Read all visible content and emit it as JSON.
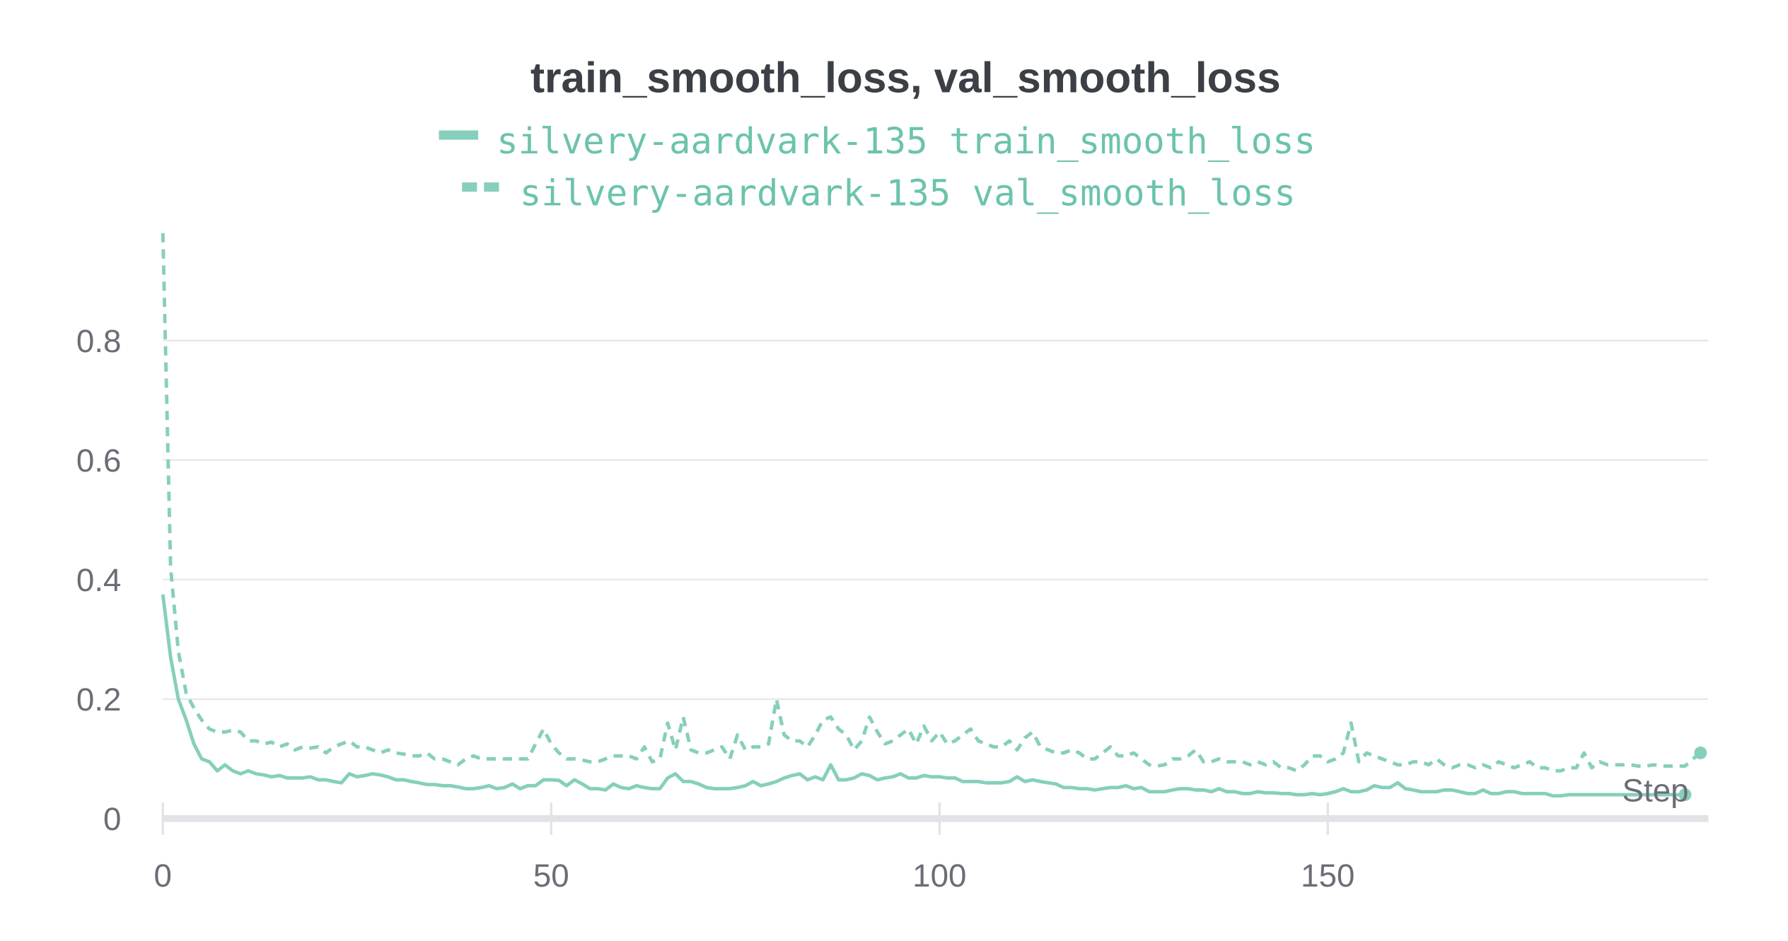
{
  "chart_data": {
    "type": "line",
    "title": "train_smooth_loss, val_smooth_loss",
    "xlabel": "Step",
    "ylabel": "",
    "xlim": [
      0,
      199
    ],
    "ylim": [
      0,
      0.98
    ],
    "x_ticks": [
      0,
      50,
      100,
      150
    ],
    "y_ticks": [
      0,
      0.2,
      0.4,
      0.6,
      0.8
    ],
    "y_tick_labels": [
      "0",
      "0.2",
      "0.4",
      "0.6",
      "0.8"
    ],
    "grid": true,
    "legend_position": "top",
    "color": "#86cfbc",
    "series": [
      {
        "name": "silvery-aardvark-135 train_smooth_loss",
        "dash": "solid",
        "x_start": 0,
        "values": [
          0.375,
          0.27,
          0.2,
          0.165,
          0.125,
          0.1,
          0.095,
          0.08,
          0.09,
          0.08,
          0.075,
          0.08,
          0.075,
          0.073,
          0.07,
          0.072,
          0.068,
          0.068,
          0.068,
          0.07,
          0.065,
          0.065,
          0.062,
          0.06,
          0.075,
          0.07,
          0.072,
          0.075,
          0.073,
          0.07,
          0.065,
          0.065,
          0.062,
          0.06,
          0.057,
          0.057,
          0.055,
          0.055,
          0.053,
          0.05,
          0.05,
          0.052,
          0.055,
          0.05,
          0.052,
          0.058,
          0.05,
          0.055,
          0.055,
          0.065,
          0.065,
          0.064,
          0.055,
          0.065,
          0.058,
          0.05,
          0.05,
          0.048,
          0.058,
          0.052,
          0.05,
          0.055,
          0.052,
          0.05,
          0.05,
          0.068,
          0.075,
          0.062,
          0.062,
          0.058,
          0.052,
          0.05,
          0.05,
          0.05,
          0.052,
          0.055,
          0.062,
          0.055,
          0.058,
          0.062,
          0.068,
          0.072,
          0.075,
          0.065,
          0.07,
          0.065,
          0.09,
          0.065,
          0.065,
          0.068,
          0.075,
          0.072,
          0.065,
          0.068,
          0.07,
          0.075,
          0.068,
          0.068,
          0.072,
          0.07,
          0.07,
          0.068,
          0.068,
          0.062,
          0.062,
          0.062,
          0.06,
          0.06,
          0.06,
          0.062,
          0.07,
          0.062,
          0.065,
          0.062,
          0.06,
          0.058,
          0.052,
          0.052,
          0.05,
          0.05,
          0.048,
          0.05,
          0.052,
          0.052,
          0.055,
          0.05,
          0.052,
          0.045,
          0.045,
          0.045,
          0.048,
          0.05,
          0.05,
          0.048,
          0.048,
          0.045,
          0.05,
          0.045,
          0.045,
          0.042,
          0.042,
          0.045,
          0.043,
          0.043,
          0.042,
          0.042,
          0.04,
          0.04,
          0.042,
          0.04,
          0.042,
          0.045,
          0.05,
          0.045,
          0.045,
          0.048,
          0.055,
          0.052,
          0.052,
          0.06,
          0.05,
          0.048,
          0.045,
          0.045,
          0.045,
          0.048,
          0.048,
          0.045,
          0.042,
          0.042,
          0.048,
          0.042,
          0.042,
          0.045,
          0.045,
          0.042,
          0.042,
          0.042,
          0.042,
          0.038,
          0.038,
          0.04,
          0.04,
          0.04,
          0.04,
          0.04,
          0.04,
          0.04,
          0.04,
          0.04,
          0.04,
          0.04,
          0.04,
          0.04,
          0.04,
          0.04,
          0.04
        ]
      },
      {
        "name": "silvery-aardvark-135 val_smooth_loss",
        "dash": "dashed",
        "x_start": 0,
        "values": [
          0.98,
          0.42,
          0.28,
          0.21,
          0.185,
          0.165,
          0.15,
          0.145,
          0.145,
          0.148,
          0.145,
          0.13,
          0.13,
          0.125,
          0.128,
          0.12,
          0.125,
          0.115,
          0.12,
          0.118,
          0.12,
          0.11,
          0.12,
          0.125,
          0.13,
          0.12,
          0.12,
          0.115,
          0.11,
          0.115,
          0.11,
          0.108,
          0.105,
          0.105,
          0.11,
          0.1,
          0.1,
          0.095,
          0.09,
          0.1,
          0.105,
          0.1,
          0.1,
          0.1,
          0.1,
          0.1,
          0.1,
          0.1,
          0.125,
          0.15,
          0.125,
          0.11,
          0.1,
          0.1,
          0.098,
          0.095,
          0.095,
          0.1,
          0.105,
          0.105,
          0.105,
          0.1,
          0.12,
          0.095,
          0.1,
          0.16,
          0.115,
          0.17,
          0.115,
          0.11,
          0.11,
          0.115,
          0.12,
          0.1,
          0.14,
          0.115,
          0.12,
          0.12,
          0.125,
          0.2,
          0.14,
          0.13,
          0.13,
          0.12,
          0.14,
          0.165,
          0.17,
          0.15,
          0.14,
          0.115,
          0.13,
          0.17,
          0.145,
          0.125,
          0.13,
          0.14,
          0.15,
          0.125,
          0.155,
          0.13,
          0.145,
          0.125,
          0.13,
          0.14,
          0.15,
          0.13,
          0.125,
          0.12,
          0.12,
          0.13,
          0.115,
          0.135,
          0.145,
          0.12,
          0.115,
          0.11,
          0.11,
          0.115,
          0.11,
          0.1,
          0.1,
          0.11,
          0.12,
          0.105,
          0.105,
          0.11,
          0.1,
          0.09,
          0.088,
          0.09,
          0.1,
          0.1,
          0.105,
          0.115,
          0.095,
          0.095,
          0.1,
          0.095,
          0.095,
          0.095,
          0.09,
          0.095,
          0.09,
          0.095,
          0.085,
          0.085,
          0.08,
          0.09,
          0.105,
          0.105,
          0.095,
          0.1,
          0.11,
          0.16,
          0.095,
          0.11,
          0.105,
          0.1,
          0.095,
          0.09,
          0.09,
          0.095,
          0.095,
          0.09,
          0.1,
          0.09,
          0.085,
          0.09,
          0.09,
          0.085,
          0.09,
          0.085,
          0.095,
          0.09,
          0.085,
          0.09,
          0.095,
          0.085,
          0.085,
          0.08,
          0.08,
          0.085,
          0.085,
          0.11,
          0.085,
          0.095,
          0.09,
          0.09,
          0.09,
          0.09,
          0.088,
          0.088,
          0.09,
          0.088,
          0.088,
          0.088,
          0.088,
          0.1,
          0.11
        ]
      }
    ]
  }
}
